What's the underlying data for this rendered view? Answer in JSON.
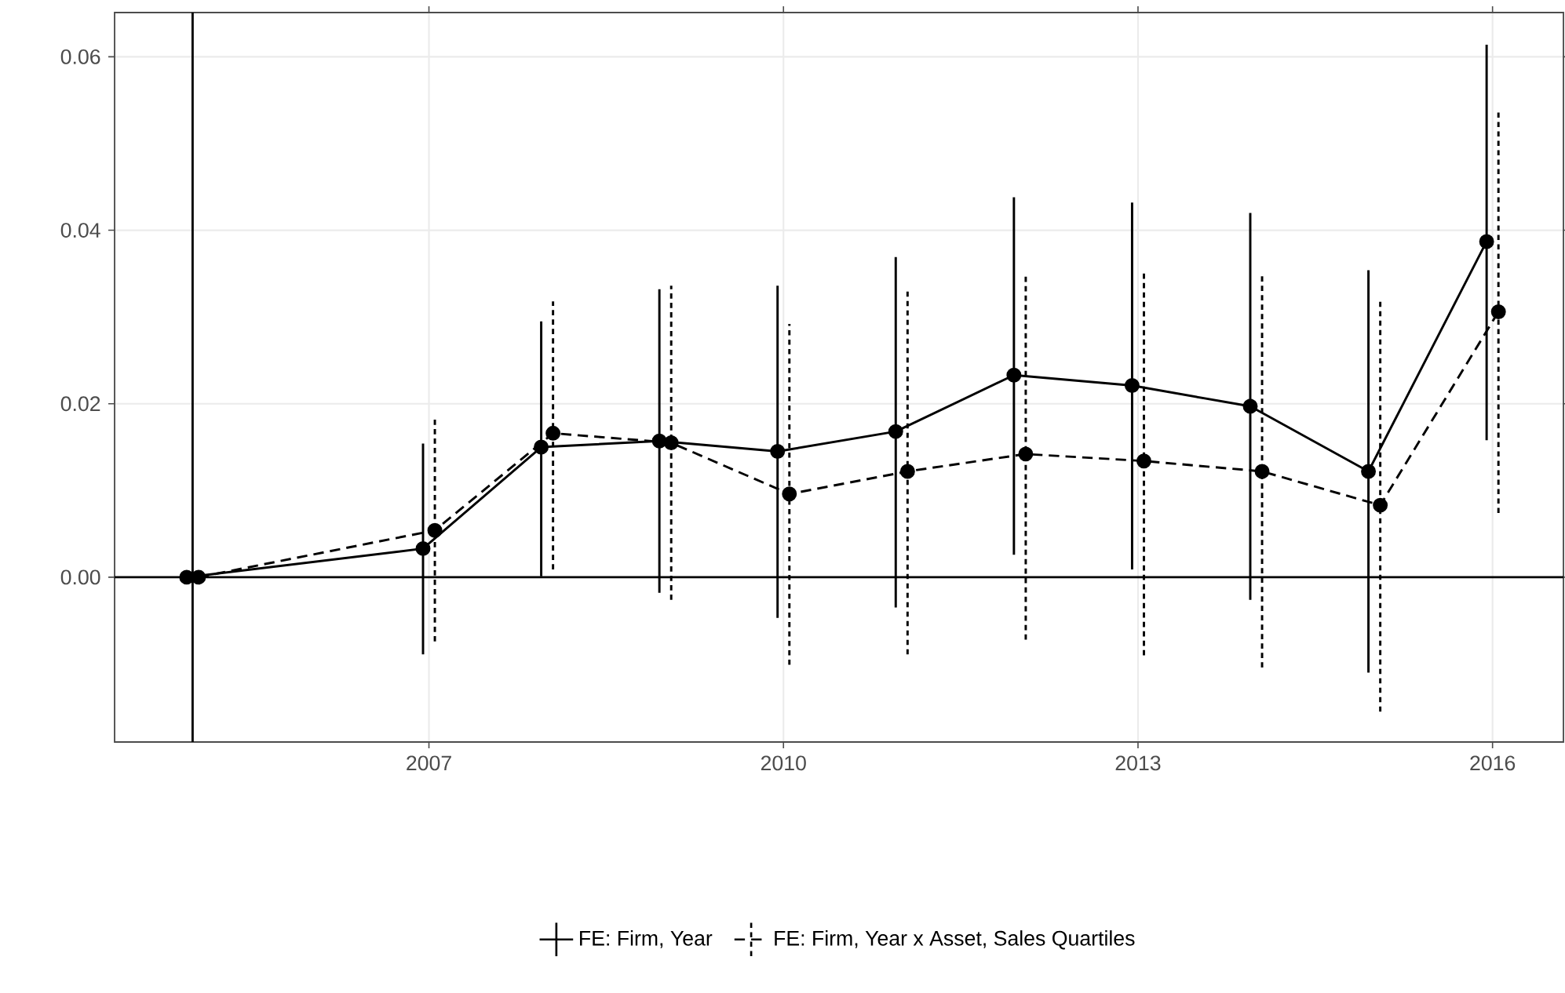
{
  "chart_data": {
    "type": "line",
    "series": [
      {
        "name": "FE: Firm, Year",
        "color": "#000000",
        "line_style": "solid",
        "x": [
          2004.95,
          2006.95,
          2007.95,
          2008.95,
          2009.95,
          2010.95,
          2011.95,
          2012.95,
          2013.95,
          2014.95,
          2015.95
        ],
        "values": [
          0,
          0.0033,
          0.015,
          0.0157,
          0.0145,
          0.0168,
          0.0233,
          0.0221,
          0.0197,
          0.0122,
          0.0387
        ],
        "errors": [
          null,
          [
            -0.0089,
            0.0154
          ],
          [
            0.0001,
            0.0295
          ],
          [
            -0.0018,
            0.0332
          ],
          [
            -0.0047,
            0.0336
          ],
          [
            -0.0035,
            0.0369
          ],
          [
            0.0026,
            0.0438
          ],
          [
            0.0009,
            0.0432
          ],
          [
            -0.0026,
            0.042
          ],
          [
            -0.011,
            0.0354
          ],
          [
            0.0158,
            0.0614
          ]
        ]
      },
      {
        "name": "FE: Firm, Year x Asset, Sales Quartiles",
        "color": "#000000",
        "line_style": "dashed",
        "x": [
          2005.05,
          2007.05,
          2008.05,
          2009.05,
          2010.05,
          2011.05,
          2012.05,
          2013.05,
          2014.05,
          2015.05,
          2016.05
        ],
        "values": [
          0,
          0.0054,
          0.0166,
          0.0155,
          0.0096,
          0.0122,
          0.0142,
          0.0134,
          0.0122,
          0.0083,
          0.0306
        ],
        "errors": [
          null,
          [
            -0.0074,
            0.0184
          ],
          [
            0.0009,
            0.0318
          ],
          [
            -0.0026,
            0.0336
          ],
          [
            -0.0101,
            0.0292
          ],
          [
            -0.0089,
            0.0332
          ],
          [
            -0.0072,
            0.0348
          ],
          [
            -0.009,
            0.0353
          ],
          [
            -0.0104,
            0.035
          ],
          [
            -0.0155,
            0.0319
          ],
          [
            0.0074,
            0.0536
          ]
        ]
      }
    ],
    "xlim": [
      2004.34,
      2016.6
    ],
    "ylim": [
      -0.019,
      0.0651
    ],
    "xticks": [
      2007,
      2010,
      2013,
      2016
    ],
    "yticks": [
      {
        "value": 0,
        "label": "0.00"
      },
      {
        "value": 0.02,
        "label": "0.02"
      },
      {
        "value": 0.04,
        "label": "0.04"
      },
      {
        "value": 0.06,
        "label": "0.06"
      }
    ],
    "ref_lines": [
      {
        "axis": "x",
        "value": 2005,
        "color": "#000000"
      },
      {
        "axis": "y",
        "value": 0,
        "color": "#000000"
      }
    ],
    "grid": true,
    "legend": "bottom",
    "marker": "circle"
  }
}
